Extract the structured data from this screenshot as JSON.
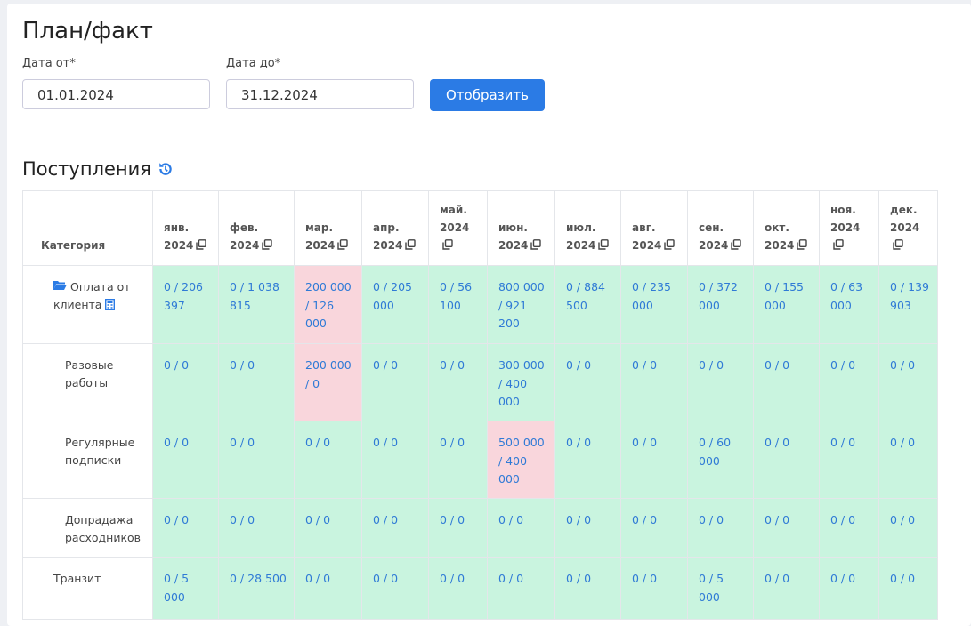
{
  "header": {
    "title": "План/факт"
  },
  "filters": {
    "from_label": "Дата от*",
    "from_value": "01.01.2024",
    "to_label": "Дата до*",
    "to_value": "31.12.2024",
    "button": "Отобразить"
  },
  "section": {
    "title": "Поступления"
  },
  "table": {
    "category_header": "Категория",
    "months": [
      "янв. 2024",
      "фев. 2024",
      "мар. 2024",
      "апр. 2024",
      "май. 2024",
      "июн. 2024",
      "июл. 2024",
      "авг. 2024",
      "сен. 2024",
      "окт. 2024",
      "ноя. 2024",
      "дек. 2024"
    ],
    "rows": [
      {
        "label": "Оплата от клиента",
        "cells": [
          "0 / 206 397",
          "0 / 1 038 815",
          "200 000 / 126 000",
          "0 / 205 000",
          "0 / 56 100",
          "800 000 / 921 200",
          "0 / 884 500",
          "0 / 235 000",
          "0 / 372 000",
          "0 / 155 000",
          "0 / 63 000",
          "0 / 139 903"
        ],
        "highlighted_columns": [
          2
        ]
      },
      {
        "label": "Разовые работы",
        "cells": [
          "0 / 0",
          "0 / 0",
          "200 000 / 0",
          "0 / 0",
          "0 / 0",
          "300 000 / 400 000",
          "0 / 0",
          "0 / 0",
          "0 / 0",
          "0 / 0",
          "0 / 0",
          "0 / 0"
        ],
        "highlighted_columns": [
          2
        ]
      },
      {
        "label": "Регулярные подписки",
        "cells": [
          "0 / 0",
          "0 / 0",
          "0 / 0",
          "0 / 0",
          "0 / 0",
          "500 000 / 400 000",
          "0 / 0",
          "0 / 0",
          "0 / 60 000",
          "0 / 0",
          "0 / 0",
          "0 / 0"
        ],
        "highlighted_columns": [
          5
        ]
      },
      {
        "label": "Допрадажа расходников",
        "cells": [
          "0 / 0",
          "0 / 0",
          "0 / 0",
          "0 / 0",
          "0 / 0",
          "0 / 0",
          "0 / 0",
          "0 / 0",
          "0 / 0",
          "0 / 0",
          "0 / 0",
          "0 / 0"
        ],
        "highlighted_columns": []
      },
      {
        "label": "Транзит",
        "cells": [
          "0 / 5 000",
          "0 / 28 500",
          "0 / 0",
          "0 / 0",
          "0 / 0",
          "0 / 0",
          "0 / 0",
          "0 / 0",
          "0 / 5 000",
          "0 / 0",
          "0 / 0",
          "0 / 0"
        ],
        "highlighted_columns": []
      }
    ]
  }
}
